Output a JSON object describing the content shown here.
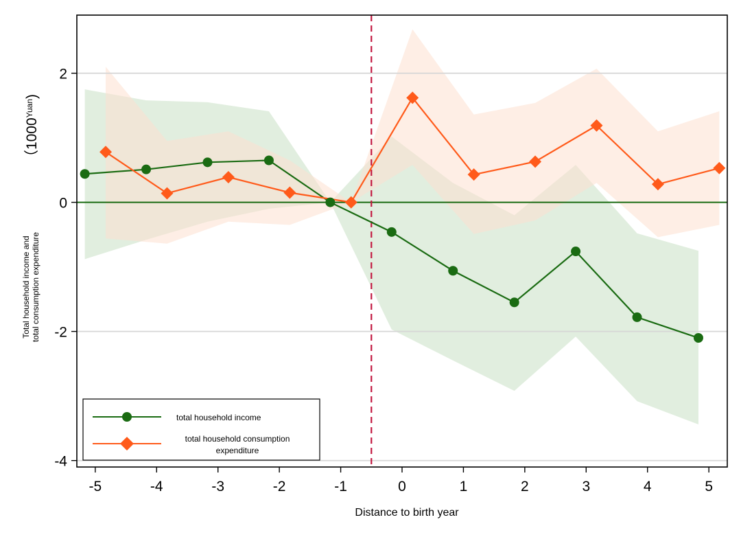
{
  "chart_data": {
    "type": "line",
    "xlabel": "Distance to birth year",
    "ylabel_lines": [
      "Total household income and",
      "total consumption expenditure"
    ],
    "unit_label": {
      "open": "（",
      "main": "1000",
      "sup": "Yuan",
      "close": ")"
    },
    "xlim": [
      -5.3,
      5.3
    ],
    "ylim": [
      -4.1,
      2.9
    ],
    "x_ticks": [
      -5,
      -4,
      -3,
      -2,
      -1,
      0,
      1,
      2,
      3,
      4,
      5
    ],
    "y_ticks": [
      -4,
      -2,
      0,
      2
    ],
    "grid": "horizontal",
    "zero_line": 0,
    "event_line_x": -0.5,
    "legend_position": "bottom-left",
    "colors": {
      "income": "#1a6b12",
      "income_band": "#c8e0c4",
      "consumption": "#ff5a1a",
      "consumption_band": "#fde0d0",
      "event_line": "#c21840",
      "grid": "#d6d6d6"
    },
    "series": [
      {
        "name": "total household income",
        "marker": "circle",
        "x": [
          -5.17,
          -4.17,
          -3.17,
          -2.17,
          -1.17,
          -0.17,
          0.83,
          1.83,
          2.83,
          3.83,
          4.83
        ],
        "values": [
          0.44,
          0.51,
          0.62,
          0.65,
          0.0,
          -0.46,
          -1.06,
          -1.55,
          -0.76,
          -1.78,
          -2.1
        ],
        "upper": [
          1.75,
          1.58,
          1.55,
          1.41,
          0.0,
          1.02,
          0.3,
          -0.2,
          0.58,
          -0.48,
          -0.75
        ],
        "lower": [
          -0.88,
          -0.58,
          -0.3,
          -0.1,
          0.0,
          -1.97,
          -2.45,
          -2.92,
          -2.08,
          -3.08,
          -3.44
        ]
      },
      {
        "name": "total household consumption expenditure",
        "legend_lines": [
          "total household consumption",
          "expenditure"
        ],
        "marker": "diamond",
        "x": [
          -4.83,
          -3.83,
          -2.83,
          -1.83,
          -0.83,
          0.17,
          1.17,
          2.17,
          3.17,
          4.17,
          5.17
        ],
        "values": [
          0.78,
          0.14,
          0.39,
          0.15,
          0.0,
          1.62,
          0.43,
          0.63,
          1.19,
          0.28,
          0.53
        ],
        "upper": [
          2.1,
          0.95,
          1.1,
          0.65,
          0.0,
          2.68,
          1.36,
          1.54,
          2.07,
          1.1,
          1.41
        ],
        "lower": [
          -0.56,
          -0.64,
          -0.3,
          -0.35,
          0.0,
          0.58,
          -0.49,
          -0.28,
          0.3,
          -0.54,
          -0.35
        ]
      }
    ]
  }
}
